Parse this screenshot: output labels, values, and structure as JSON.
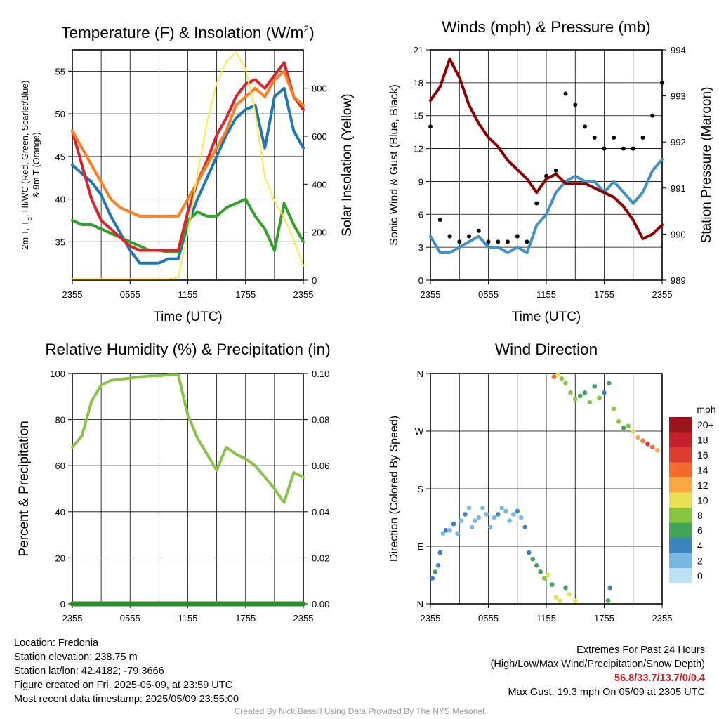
{
  "chart_data": [
    {
      "id": "temperature",
      "type": "line",
      "title": "Temperature (F) & Insolation (W/m",
      "title_sup": "2",
      "title_end": ")",
      "xlabel": "Time (UTC)",
      "ylabel_line1": "2m T, T",
      "ylabel_sub": "d",
      "ylabel_line1_rest": ", HI/WC (Red, Green, Scarlet/Blue)",
      "ylabel_line2": "& 9m T (Orange)",
      "y2label": "Solar Insolation (Yellow)",
      "xticks": [
        "2355",
        "0555",
        "1155",
        "1755",
        "2355"
      ],
      "ylim": [
        30.5,
        57.5
      ],
      "yticks": [
        35,
        40,
        45,
        50,
        55
      ],
      "y2lim": [
        0,
        960
      ],
      "y2ticks": [
        0,
        200,
        400,
        600,
        800
      ],
      "x": [
        0,
        1,
        2,
        3,
        4,
        5,
        6,
        7,
        8,
        9,
        10,
        11,
        12,
        13,
        14,
        15,
        16,
        17,
        18,
        19,
        20,
        21,
        22,
        23,
        24
      ],
      "series": [
        {
          "color": "#1f78b4",
          "values": [
            44,
            43,
            42,
            40.5,
            38,
            36,
            34,
            32.5,
            32.5,
            32.5,
            33,
            33,
            37,
            40,
            42.5,
            45,
            47.5,
            49.5,
            50.5,
            51,
            46,
            52,
            53,
            48,
            46
          ]
        },
        {
          "color": "#33a02c",
          "values": [
            37.5,
            37,
            37,
            36.5,
            36,
            35.5,
            35,
            34.5,
            34,
            34,
            33.8,
            33.8,
            37.5,
            38.5,
            38,
            38,
            39,
            39.5,
            40,
            38,
            36.5,
            34,
            39.5,
            37,
            35
          ]
        },
        {
          "color": "#d9242b",
          "values": [
            48,
            44,
            40,
            37.5,
            36.5,
            35.5,
            34.5,
            34,
            34,
            34,
            34,
            34,
            38.5,
            42,
            44.5,
            47.5,
            49.5,
            52,
            53.5,
            54,
            53,
            54.5,
            56,
            52,
            50.5
          ]
        },
        {
          "color": "#fd7f23",
          "values": [
            48,
            46,
            44,
            42,
            40,
            39,
            38.5,
            38,
            38,
            38,
            38,
            38,
            40,
            42,
            44,
            46,
            48,
            51,
            52,
            53,
            52,
            54,
            55,
            52,
            51
          ]
        },
        {
          "color": "#fde94c",
          "axis": "y2",
          "values": [
            5,
            5,
            5,
            5,
            5,
            5,
            5,
            5,
            5,
            5,
            5,
            10,
            200,
            440,
            660,
            820,
            910,
            950,
            880,
            700,
            430,
            330,
            260,
            170,
            60
          ]
        }
      ]
    },
    {
      "id": "winds",
      "type": "line",
      "title": "Winds (mph) & Pressure (mb)",
      "xlabel": "Time (UTC)",
      "ylabel": "Sonic Wind & Gust (Blue, Black)",
      "y2label": "Station Pressure (Maroon)",
      "xticks": [
        "2355",
        "0555",
        "1155",
        "1755",
        "2355"
      ],
      "ylim": [
        0,
        21
      ],
      "yticks": [
        0,
        3,
        6,
        9,
        12,
        15,
        18,
        21
      ],
      "y2lim": [
        989,
        994
      ],
      "y2ticks": [
        989,
        990,
        991,
        992,
        993,
        994
      ],
      "x": [
        0,
        1,
        2,
        3,
        4,
        5,
        6,
        7,
        8,
        9,
        10,
        11,
        12,
        13,
        14,
        15,
        16,
        17,
        18,
        19,
        20,
        21,
        22,
        23,
        24
      ],
      "series": [
        {
          "color": "#4292c6",
          "values": [
            4,
            2.5,
            2.5,
            3,
            3.5,
            4,
            3,
            3,
            2.5,
            3,
            2.5,
            5,
            6,
            8,
            9,
            9.5,
            9,
            9,
            8,
            9,
            8,
            7,
            8,
            10,
            11
          ]
        },
        {
          "color": "#000000",
          "style": "dots",
          "values": [
            14,
            5.5,
            4,
            3.5,
            4,
            4.5,
            3.5,
            3.5,
            3.5,
            4,
            3.5,
            7,
            9.5,
            10,
            17,
            16,
            14,
            13,
            12,
            13,
            12,
            12,
            13,
            15,
            18
          ]
        },
        {
          "color": "#8b0000",
          "axis": "y2",
          "values": [
            992.9,
            993.2,
            993.8,
            993.4,
            992.8,
            992.4,
            992.1,
            991.9,
            991.6,
            991.4,
            991.2,
            990.9,
            991.2,
            991.3,
            991.1,
            991.1,
            991.1,
            991.0,
            990.9,
            990.8,
            990.6,
            990.3,
            989.9,
            990.0,
            990.2
          ]
        }
      ]
    },
    {
      "id": "humidity",
      "type": "line",
      "title": "Relative Humidity (%) & Precipitation (in)",
      "ylabel": "Percent & Precipitation",
      "xticks": [
        "2355",
        "0555",
        "1155",
        "1755",
        "2355"
      ],
      "ylim": [
        0,
        100
      ],
      "yticks": [
        0,
        20,
        40,
        60,
        80,
        100
      ],
      "y2lim": [
        0,
        0.1
      ],
      "y2ticks": [
        "0.00",
        "0.02",
        "0.04",
        "0.06",
        "0.08",
        "0.10"
      ],
      "x": [
        0,
        1,
        2,
        3,
        4,
        5,
        6,
        7,
        8,
        9,
        10,
        11,
        12,
        13,
        14,
        15,
        16,
        17,
        18,
        19,
        20,
        21,
        22,
        23,
        24
      ],
      "series": [
        {
          "color": "#8bc34a",
          "values": [
            68,
            73,
            88,
            95,
            97,
            97.5,
            98,
            98.5,
            99,
            99,
            99.5,
            99.5,
            82,
            72,
            65,
            58,
            68,
            65,
            63,
            60,
            55,
            50,
            44,
            57,
            55
          ]
        },
        {
          "color": "#2e8b2e",
          "axis": "y2",
          "values": [
            0,
            0,
            0,
            0,
            0,
            0,
            0,
            0,
            0,
            0,
            0,
            0,
            0,
            0,
            0,
            0,
            0,
            0,
            0,
            0,
            0,
            0,
            0,
            0,
            0
          ]
        }
      ]
    },
    {
      "id": "direction",
      "type": "scatter",
      "title": "Wind Direction",
      "ylabel": "Direction (Colored By Speed)",
      "xticks": [
        "2355",
        "0555",
        "1155",
        "1755",
        "2355"
      ],
      "ylim": [
        0,
        360
      ],
      "yticks": [
        "N",
        "E",
        "S",
        "W",
        "N"
      ],
      "legend_title": "mph",
      "legend_labels": [
        "20+",
        "18",
        "16",
        "14",
        "12",
        "10",
        "8",
        "6",
        "4",
        "2",
        "0"
      ],
      "legend_colors": [
        "#99151b",
        "#c8202a",
        "#e03b30",
        "#f26a2c",
        "#f9a944",
        "#e9e055",
        "#88c540",
        "#43a358",
        "#3c84c0",
        "#7ab8e3",
        "#bfe3f6"
      ],
      "points": [
        [
          0.2,
          40,
          4
        ],
        [
          0.5,
          50,
          6
        ],
        [
          0.8,
          60,
          4
        ],
        [
          1.0,
          80,
          3
        ],
        [
          1.3,
          110,
          2
        ],
        [
          1.6,
          115,
          3
        ],
        [
          2.0,
          115,
          2
        ],
        [
          2.4,
          125,
          3
        ],
        [
          2.8,
          110,
          2
        ],
        [
          3.2,
          130,
          2
        ],
        [
          3.6,
          140,
          3
        ],
        [
          4.0,
          150,
          2
        ],
        [
          4.3,
          120,
          2
        ],
        [
          4.6,
          130,
          1
        ],
        [
          5.0,
          135,
          2
        ],
        [
          5.4,
          150,
          2
        ],
        [
          5.8,
          140,
          2
        ],
        [
          6.2,
          120,
          1
        ],
        [
          6.6,
          135,
          2
        ],
        [
          7.0,
          140,
          3
        ],
        [
          7.4,
          150,
          2
        ],
        [
          7.8,
          145,
          2
        ],
        [
          8.2,
          130,
          2
        ],
        [
          8.6,
          140,
          2
        ],
        [
          9.0,
          145,
          3
        ],
        [
          9.4,
          135,
          2
        ],
        [
          9.8,
          120,
          3
        ],
        [
          10.2,
          80,
          4
        ],
        [
          10.6,
          70,
          5
        ],
        [
          11.0,
          60,
          6
        ],
        [
          11.4,
          50,
          6
        ],
        [
          11.8,
          40,
          7
        ],
        [
          12.2,
          45,
          10
        ],
        [
          12.6,
          30,
          6
        ],
        [
          13.0,
          10,
          9
        ],
        [
          13.4,
          5,
          10
        ],
        [
          14.0,
          25,
          5
        ],
        [
          14.4,
          15,
          10
        ],
        [
          15.0,
          5,
          9
        ],
        [
          18.4,
          5,
          6
        ],
        [
          18.6,
          25,
          4
        ],
        [
          12.8,
          355,
          13
        ],
        [
          13.2,
          358,
          10
        ],
        [
          13.6,
          352,
          8
        ],
        [
          14.0,
          345,
          7
        ],
        [
          14.5,
          330,
          8
        ],
        [
          15.0,
          320,
          7
        ],
        [
          15.5,
          325,
          6
        ],
        [
          16.0,
          330,
          5
        ],
        [
          16.5,
          315,
          8
        ],
        [
          17.0,
          340,
          6
        ],
        [
          17.5,
          322,
          7
        ],
        [
          18.0,
          330,
          4
        ],
        [
          18.5,
          345,
          5
        ],
        [
          19.0,
          305,
          8
        ],
        [
          19.5,
          285,
          7
        ],
        [
          20.0,
          275,
          6
        ],
        [
          20.5,
          278,
          8
        ],
        [
          21.0,
          270,
          10
        ],
        [
          21.5,
          260,
          12
        ],
        [
          22.0,
          255,
          14
        ],
        [
          22.5,
          250,
          15
        ],
        [
          23.0,
          245,
          13
        ],
        [
          23.5,
          240,
          12
        ]
      ]
    }
  ],
  "footer": {
    "location": "Location: Fredonia",
    "elevation": "Station elevation: 238.75 m",
    "latlon": "Station lat/lon: 42.4182; -79.3666",
    "created": "Figure created on Fri, 2025-05-09, at 23:59 UTC",
    "recent": "Most recent data timestamp: 2025/05/09 23:55:00",
    "extremes_title": "Extremes For Past 24 Hours",
    "extremes_sub": "(High/Low/Max Wind/Precipitation/Snow Depth)",
    "extremes_values": "56.8/33.7/13.7/0/0.4",
    "max_gust": "Max Gust: 19.3 mph On 05/09 at 2305 UTC",
    "credit": "Created By Nick Bassill Using Data Provided By The NYS Mesonet"
  }
}
